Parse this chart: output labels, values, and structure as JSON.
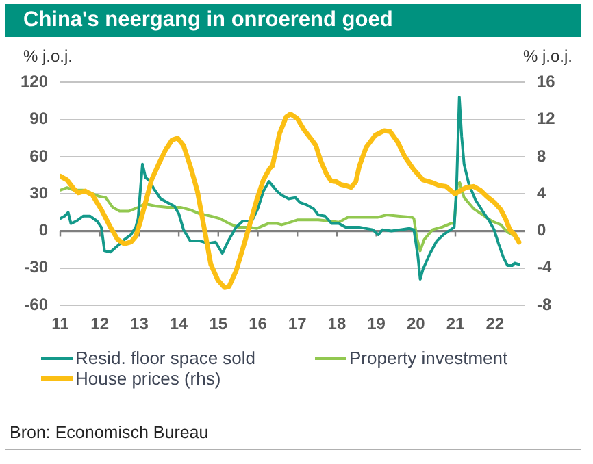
{
  "chart_data": {
    "type": "line",
    "title": "China's neergang in onroerend goed",
    "ylabel": "% j.o.j.",
    "y2label": "% j.o.j.",
    "xlim": [
      2011,
      2022.75
    ],
    "xticks": [
      {
        "value": 2011,
        "label": "11"
      },
      {
        "value": 2012,
        "label": "12"
      },
      {
        "value": 2013,
        "label": "13"
      },
      {
        "value": 2014,
        "label": "14"
      },
      {
        "value": 2015,
        "label": "15"
      },
      {
        "value": 2016,
        "label": "16"
      },
      {
        "value": 2017,
        "label": "17"
      },
      {
        "value": 2018,
        "label": "18"
      },
      {
        "value": 2019,
        "label": "19"
      },
      {
        "value": 2020,
        "label": "20"
      },
      {
        "value": 2021,
        "label": "21"
      },
      {
        "value": 2022,
        "label": "22"
      }
    ],
    "ylim": [
      -60,
      120
    ],
    "yticks": [
      -60,
      -30,
      0,
      30,
      60,
      90,
      120
    ],
    "y2lim": [
      -8,
      16
    ],
    "y2ticks": [
      -8,
      -4,
      0,
      4,
      8,
      12,
      16
    ],
    "grid": "y",
    "legend": "bottom",
    "marker": "none",
    "line_style": "solid",
    "series": [
      {
        "name": "Resid. floor space sold",
        "color": "#14998a",
        "x": [
          2011.0,
          2011.11,
          2011.2,
          2011.27,
          2011.41,
          2011.58,
          2011.75,
          2011.93,
          2012.04,
          2012.12,
          2012.27,
          2012.45,
          2012.62,
          2012.79,
          2012.91,
          2012.97,
          2013.08,
          2013.16,
          2013.25,
          2013.37,
          2013.54,
          2013.71,
          2013.89,
          2014.0,
          2014.12,
          2014.29,
          2014.52,
          2014.75,
          2014.93,
          2015.1,
          2015.27,
          2015.45,
          2015.62,
          2015.85,
          2016.0,
          2016.14,
          2016.28,
          2016.49,
          2016.6,
          2016.78,
          2016.95,
          2017.07,
          2017.24,
          2017.41,
          2017.53,
          2017.7,
          2017.87,
          2018.05,
          2018.22,
          2018.39,
          2018.57,
          2018.74,
          2018.91,
          2019.05,
          2019.15,
          2019.38,
          2019.61,
          2019.84,
          2019.95,
          2020.05,
          2020.11,
          2020.18,
          2020.36,
          2020.53,
          2020.7,
          2020.88,
          2020.97,
          2021.03,
          2021.1,
          2021.16,
          2021.22,
          2021.34,
          2021.51,
          2021.69,
          2021.86,
          2021.98,
          2022.09,
          2022.21,
          2022.32,
          2022.44,
          2022.5,
          2022.61
        ],
        "values": [
          10,
          12,
          15,
          6,
          8,
          12,
          12,
          8,
          3,
          -16,
          -17,
          -12,
          -7,
          -3,
          3,
          10,
          54,
          43,
          41,
          34,
          26,
          23,
          20,
          14,
          1,
          -8,
          -8,
          -10,
          -9,
          -18,
          -7,
          3,
          8,
          8,
          18,
          32,
          40,
          32,
          29,
          26,
          27,
          23,
          21,
          18,
          13,
          12,
          6,
          6,
          3,
          3,
          3,
          2,
          1,
          -3,
          1,
          0,
          1,
          2,
          1,
          -20,
          -39,
          -31,
          -18,
          -8,
          -3,
          1,
          3,
          36,
          108,
          76,
          54,
          38,
          25,
          16,
          8,
          1,
          -10,
          -21,
          -28,
          -28,
          -26,
          -27
        ]
      },
      {
        "name": "Property investment",
        "color": "#92c850",
        "x": [
          2011.0,
          2011.17,
          2011.35,
          2011.58,
          2011.75,
          2011.98,
          2012.15,
          2012.33,
          2012.5,
          2012.73,
          2012.97,
          2013.14,
          2013.43,
          2013.71,
          2014.06,
          2014.29,
          2014.52,
          2014.81,
          2015.04,
          2015.27,
          2015.51,
          2015.79,
          2015.97,
          2016.26,
          2016.49,
          2016.6,
          2016.72,
          2017.01,
          2017.18,
          2017.53,
          2017.82,
          2018.05,
          2018.28,
          2018.68,
          2019.03,
          2019.26,
          2019.55,
          2019.9,
          2019.95,
          2020.02,
          2020.11,
          2020.21,
          2020.42,
          2020.65,
          2020.88,
          2020.97,
          2021.05,
          2021.11,
          2021.22,
          2021.46,
          2021.69,
          2021.92,
          2022.15,
          2022.32,
          2022.5,
          2022.61
        ],
        "values": [
          33,
          35,
          33,
          33,
          31,
          28,
          27,
          19,
          16,
          16,
          19,
          22,
          20,
          19,
          19,
          17,
          14,
          12,
          10,
          6,
          3,
          3,
          2,
          6,
          6,
          5,
          6,
          9,
          9,
          9,
          8,
          7,
          11,
          11,
          11,
          13,
          12,
          11,
          10,
          -5,
          -16,
          -7,
          1,
          3,
          6,
          6,
          38,
          39,
          27,
          18,
          13,
          8,
          5,
          -1,
          -4,
          -7
        ]
      },
      {
        "name": "House prices (rhs)",
        "color": "#fbbf14",
        "axis": "y2",
        "x": [
          2011.0,
          2011.17,
          2011.35,
          2011.46,
          2011.63,
          2011.81,
          2012.04,
          2012.27,
          2012.45,
          2012.62,
          2012.79,
          2012.91,
          2013.02,
          2013.14,
          2013.31,
          2013.49,
          2013.66,
          2013.83,
          2013.97,
          2014.12,
          2014.29,
          2014.47,
          2014.64,
          2014.81,
          2014.99,
          2015.16,
          2015.27,
          2015.45,
          2015.62,
          2015.79,
          2015.97,
          2016.14,
          2016.31,
          2016.37,
          2016.55,
          2016.72,
          2016.83,
          2017.0,
          2017.17,
          2017.35,
          2017.47,
          2017.58,
          2017.73,
          2017.85,
          2017.99,
          2018.1,
          2018.22,
          2018.36,
          2018.48,
          2018.57,
          2018.74,
          2018.97,
          2019.2,
          2019.35,
          2019.55,
          2019.72,
          2019.95,
          2020.18,
          2020.42,
          2020.59,
          2020.76,
          2020.9,
          2020.99,
          2021.11,
          2021.28,
          2021.46,
          2021.63,
          2021.8,
          2021.98,
          2022.15,
          2022.27,
          2022.38,
          2022.5,
          2022.61
        ],
        "values": [
          5.9,
          5.5,
          4.5,
          4.1,
          4.3,
          3.9,
          2.3,
          0.4,
          -0.9,
          -1.4,
          -1.2,
          -0.6,
          0.9,
          2.8,
          5.5,
          7.2,
          8.7,
          9.8,
          10.0,
          9.2,
          7.0,
          4.3,
          0.4,
          -3.6,
          -5.3,
          -6.1,
          -6.0,
          -4.3,
          -1.9,
          0.6,
          3.3,
          5.5,
          6.8,
          7.0,
          10.5,
          12.3,
          12.6,
          12.1,
          10.9,
          9.9,
          9.2,
          7.7,
          6.2,
          5.4,
          5.3,
          5.0,
          4.9,
          4.7,
          5.3,
          7.0,
          9.0,
          10.3,
          10.8,
          10.7,
          9.5,
          8.0,
          6.6,
          5.5,
          5.2,
          4.9,
          4.8,
          4.3,
          4.0,
          4.3,
          4.7,
          4.8,
          4.4,
          3.7,
          3.1,
          2.3,
          1.3,
          0.1,
          -0.4,
          -1.2
        ]
      }
    ],
    "annotations": [
      "Bron: Economisch Bureau"
    ]
  }
}
